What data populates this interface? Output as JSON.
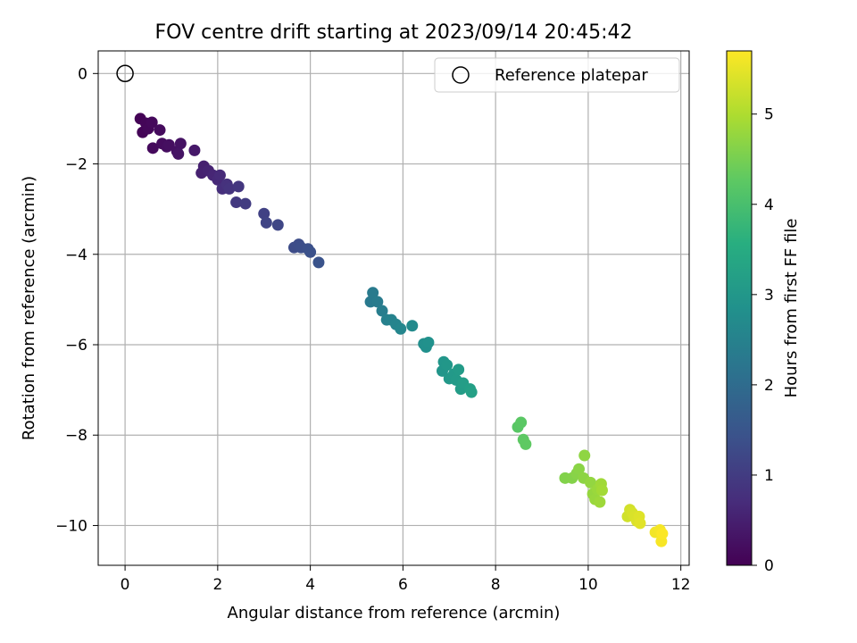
{
  "chart_data": {
    "type": "scatter",
    "title": "FOV centre drift starting at 2023/09/14 20:45:42",
    "xlabel": "Angular distance from reference (arcmin)",
    "ylabel": "Rotation from reference (arcmin)",
    "xlim": [
      -0.58,
      12.18
    ],
    "ylim": [
      -10.88,
      0.5
    ],
    "xticks": [
      0,
      2,
      4,
      6,
      8,
      10,
      12
    ],
    "yticks": [
      0,
      -2,
      -4,
      -6,
      -8,
      -10
    ],
    "grid": true,
    "legend": {
      "placement": "top-right",
      "entries": [
        "Reference platepar"
      ]
    },
    "reference_point": {
      "x": 0,
      "y": 0
    },
    "colorbar": {
      "label": "Hours from first FF file",
      "colormap": "viridis",
      "range": [
        0,
        5.7
      ],
      "ticks": [
        0,
        1,
        2,
        3,
        4,
        5
      ]
    },
    "series": [
      {
        "points": [
          [
            0.33,
            -1.0,
            0.03
          ],
          [
            0.38,
            -1.3,
            0.05
          ],
          [
            0.45,
            -1.1,
            0.08
          ],
          [
            0.5,
            -1.22,
            0.1
          ],
          [
            0.58,
            -1.08,
            0.12
          ],
          [
            0.6,
            -1.65,
            0.14
          ],
          [
            0.75,
            -1.25,
            0.16
          ],
          [
            0.8,
            -1.55,
            0.18
          ],
          [
            0.9,
            -1.62,
            0.2
          ],
          [
            0.95,
            -1.58,
            0.22
          ],
          [
            1.12,
            -1.72,
            0.25
          ],
          [
            1.2,
            -1.55,
            0.28
          ],
          [
            1.15,
            -1.78,
            0.3
          ],
          [
            1.5,
            -1.7,
            0.38
          ],
          [
            1.7,
            -2.05,
            0.5
          ],
          [
            1.65,
            -2.2,
            0.52
          ],
          [
            1.8,
            -2.15,
            0.55
          ],
          [
            1.9,
            -2.25,
            0.6
          ],
          [
            2.0,
            -2.35,
            0.65
          ],
          [
            2.05,
            -2.25,
            0.68
          ],
          [
            2.1,
            -2.55,
            0.75
          ],
          [
            2.2,
            -2.45,
            0.8
          ],
          [
            2.25,
            -2.55,
            0.85
          ],
          [
            2.45,
            -2.5,
            0.9
          ],
          [
            2.4,
            -2.85,
            0.95
          ],
          [
            2.6,
            -2.88,
            1.0
          ],
          [
            3.0,
            -3.1,
            1.1
          ],
          [
            3.05,
            -3.3,
            1.15
          ],
          [
            3.3,
            -3.35,
            1.2
          ],
          [
            3.65,
            -3.85,
            1.3
          ],
          [
            3.75,
            -3.78,
            1.33
          ],
          [
            3.8,
            -3.85,
            1.35
          ],
          [
            3.95,
            -3.88,
            1.38
          ],
          [
            4.0,
            -3.95,
            1.4
          ],
          [
            4.18,
            -4.18,
            1.45
          ],
          [
            5.3,
            -5.05,
            2.3
          ],
          [
            5.35,
            -4.85,
            2.32
          ],
          [
            5.45,
            -5.05,
            2.35
          ],
          [
            5.55,
            -5.25,
            2.4
          ],
          [
            5.65,
            -5.45,
            2.45
          ],
          [
            5.75,
            -5.45,
            2.5
          ],
          [
            5.85,
            -5.55,
            2.55
          ],
          [
            5.95,
            -5.65,
            2.6
          ],
          [
            6.2,
            -5.58,
            2.7
          ],
          [
            6.45,
            -5.98,
            2.8
          ],
          [
            6.5,
            -6.05,
            2.82
          ],
          [
            6.55,
            -5.95,
            2.85
          ],
          [
            6.85,
            -6.58,
            2.95
          ],
          [
            6.88,
            -6.38,
            2.97
          ],
          [
            6.95,
            -6.45,
            3.0
          ],
          [
            7.0,
            -6.75,
            3.02
          ],
          [
            7.1,
            -6.65,
            3.05
          ],
          [
            7.15,
            -6.78,
            3.08
          ],
          [
            7.2,
            -6.55,
            3.1
          ],
          [
            7.25,
            -6.98,
            3.12
          ],
          [
            7.3,
            -6.85,
            3.15
          ],
          [
            7.45,
            -6.98,
            3.2
          ],
          [
            7.48,
            -7.05,
            3.22
          ],
          [
            8.48,
            -7.82,
            4.2
          ],
          [
            8.55,
            -7.72,
            4.22
          ],
          [
            8.6,
            -8.1,
            4.25
          ],
          [
            8.65,
            -8.2,
            4.27
          ],
          [
            9.5,
            -8.95,
            4.6
          ],
          [
            9.65,
            -8.95,
            4.62
          ],
          [
            9.75,
            -8.85,
            4.65
          ],
          [
            9.8,
            -8.75,
            4.67
          ],
          [
            9.9,
            -8.95,
            4.7
          ],
          [
            9.92,
            -8.45,
            4.72
          ],
          [
            10.05,
            -9.05,
            4.75
          ],
          [
            10.1,
            -9.3,
            4.77
          ],
          [
            10.15,
            -9.42,
            4.8
          ],
          [
            10.2,
            -9.2,
            4.82
          ],
          [
            10.25,
            -9.48,
            4.85
          ],
          [
            10.28,
            -9.08,
            4.87
          ],
          [
            10.3,
            -9.22,
            4.9
          ],
          [
            10.85,
            -9.8,
            5.3
          ],
          [
            10.9,
            -9.65,
            5.32
          ],
          [
            10.95,
            -9.72,
            5.35
          ],
          [
            11.0,
            -9.8,
            5.38
          ],
          [
            11.05,
            -9.9,
            5.4
          ],
          [
            11.1,
            -9.8,
            5.42
          ],
          [
            11.12,
            -9.95,
            5.45
          ],
          [
            11.45,
            -10.15,
            5.6
          ],
          [
            11.55,
            -10.1,
            5.62
          ],
          [
            11.58,
            -10.35,
            5.65
          ],
          [
            11.6,
            -10.18,
            5.68
          ]
        ]
      }
    ]
  }
}
